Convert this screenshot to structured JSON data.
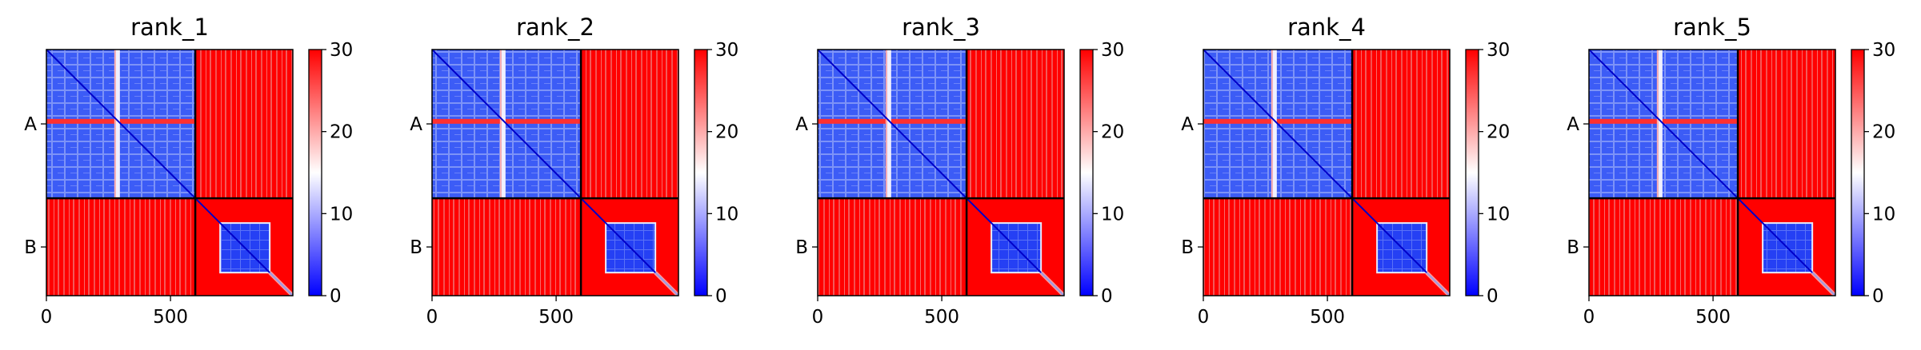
{
  "chart_data": {
    "type": "heatmap",
    "colormap": "bwr",
    "colormap_colors": [
      "#0000ff",
      "#ffffff",
      "#ff0000"
    ],
    "value_range": [
      0,
      30
    ],
    "colorbar_ticks": [
      "0",
      "10",
      "20",
      "30"
    ],
    "x_ticks": [
      "0",
      "500"
    ],
    "x_tick_values": [
      0,
      500
    ],
    "x_range": [
      0,
      993
    ],
    "chain_labels": [
      "A",
      "B"
    ],
    "chain_boundary": 600,
    "chain_B_domain": [
      700,
      900
    ],
    "panels": [
      {
        "title": "rank_1"
      },
      {
        "title": "rank_2"
      },
      {
        "title": "rank_3"
      },
      {
        "title": "rank_4"
      },
      {
        "title": "rank_5"
      }
    ]
  }
}
